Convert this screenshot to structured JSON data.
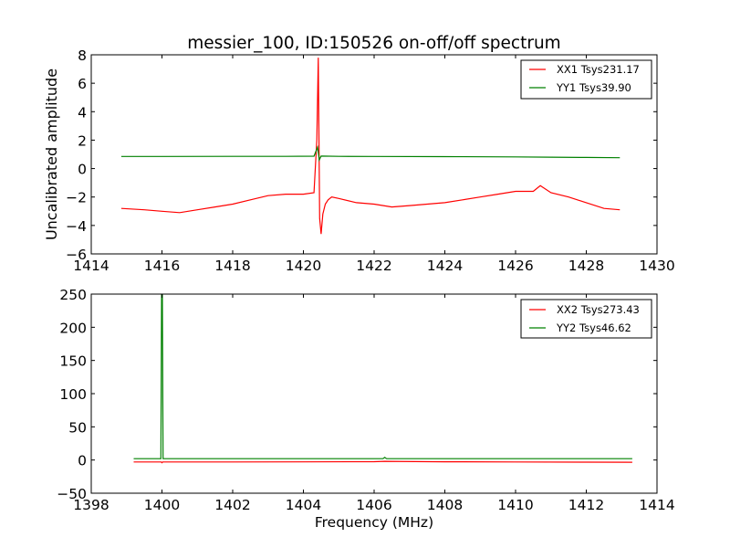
{
  "figure": {
    "title": "messier_100, ID:150526 on-off/off spectrum"
  },
  "chart_data": [
    {
      "type": "line",
      "title": "messier_100, ID:150526 on-off/off spectrum",
      "xlabel": "",
      "ylabel": "Uncalibrated amplitude",
      "xlim": [
        1414,
        1430
      ],
      "ylim": [
        -6,
        8
      ],
      "xticks": [
        "1414",
        "1416",
        "1418",
        "1420",
        "1422",
        "1424",
        "1426",
        "1428",
        "1430"
      ],
      "xtick_values": [
        1414,
        1416,
        1418,
        1420,
        1422,
        1424,
        1426,
        1428,
        1430
      ],
      "yticks": [
        "−6",
        "−4",
        "−2",
        "0",
        "2",
        "4",
        "6",
        "8"
      ],
      "ytick_values": [
        -6,
        -4,
        -2,
        0,
        2,
        4,
        6,
        8
      ],
      "grid": false,
      "legend_position": "top-right",
      "series": [
        {
          "name": "XX1 Tsys231.17",
          "color": "#ff0000",
          "x": [
            1414.85,
            1415.5,
            1416.0,
            1416.5,
            1417.0,
            1417.5,
            1418.0,
            1418.5,
            1419.0,
            1419.5,
            1420.0,
            1420.3,
            1420.38,
            1420.42,
            1420.46,
            1420.5,
            1420.55,
            1420.62,
            1420.7,
            1420.8,
            1421.0,
            1421.5,
            1422.0,
            1422.5,
            1423.0,
            1423.5,
            1424.0,
            1424.5,
            1425.0,
            1425.5,
            1426.0,
            1426.5,
            1426.7,
            1427.0,
            1427.5,
            1428.0,
            1428.5,
            1428.95
          ],
          "y": [
            -2.8,
            -2.9,
            -3.0,
            -3.1,
            -2.9,
            -2.7,
            -2.5,
            -2.2,
            -1.9,
            -1.8,
            -1.8,
            -1.7,
            2.0,
            7.8,
            -3.5,
            -4.6,
            -3.2,
            -2.5,
            -2.2,
            -2.0,
            -2.1,
            -2.4,
            -2.5,
            -2.7,
            -2.6,
            -2.5,
            -2.4,
            -2.2,
            -2.0,
            -1.8,
            -1.6,
            -1.6,
            -1.2,
            -1.7,
            -2.0,
            -2.4,
            -2.8,
            -2.9
          ]
        },
        {
          "name": "YY1 Tsys39.90",
          "color": "#008000",
          "x": [
            1414.85,
            1416.0,
            1418.0,
            1419.5,
            1420.3,
            1420.4,
            1420.45,
            1420.5,
            1421.0,
            1422.0,
            1424.0,
            1426.0,
            1427.0,
            1428.0,
            1428.95
          ],
          "y": [
            0.85,
            0.85,
            0.86,
            0.86,
            0.87,
            1.5,
            0.6,
            0.88,
            0.86,
            0.85,
            0.84,
            0.82,
            0.8,
            0.78,
            0.76
          ]
        }
      ]
    },
    {
      "type": "line",
      "title": "",
      "xlabel": "Frequency (MHz)",
      "ylabel": "",
      "xlim": [
        1398,
        1414
      ],
      "ylim": [
        -50,
        250
      ],
      "xticks": [
        "1398",
        "1400",
        "1402",
        "1404",
        "1406",
        "1408",
        "1410",
        "1412",
        "1414"
      ],
      "xtick_values": [
        1398,
        1400,
        1402,
        1404,
        1406,
        1408,
        1410,
        1412,
        1414
      ],
      "yticks": [
        "−50",
        "0",
        "50",
        "100",
        "150",
        "200",
        "250"
      ],
      "ytick_values": [
        -50,
        0,
        50,
        100,
        150,
        200,
        250
      ],
      "grid": false,
      "legend_position": "top-right",
      "series": [
        {
          "name": "XX2 Tsys273.43",
          "color": "#ff0000",
          "x": [
            1399.2,
            1399.98,
            1400.0,
            1400.02,
            1402.0,
            1404.0,
            1406.0,
            1406.3,
            1408.0,
            1410.0,
            1412.0,
            1413.3
          ],
          "y": [
            -3.0,
            -3.0,
            -4.0,
            -3.0,
            -3.0,
            -2.8,
            -2.5,
            -2.0,
            -2.7,
            -3.0,
            -3.2,
            -3.3
          ]
        },
        {
          "name": "YY2 Tsys46.62",
          "color": "#008000",
          "x": [
            1399.2,
            1399.97,
            1399.99,
            1400.01,
            1400.03,
            1402.0,
            1404.0,
            1406.25,
            1406.3,
            1406.35,
            1408.0,
            1410.0,
            1412.0,
            1413.3
          ],
          "y": [
            2.0,
            2.0,
            250,
            250,
            2.0,
            2.0,
            2.0,
            2.0,
            4.0,
            2.0,
            2.0,
            2.0,
            2.0,
            2.0
          ]
        }
      ]
    }
  ]
}
